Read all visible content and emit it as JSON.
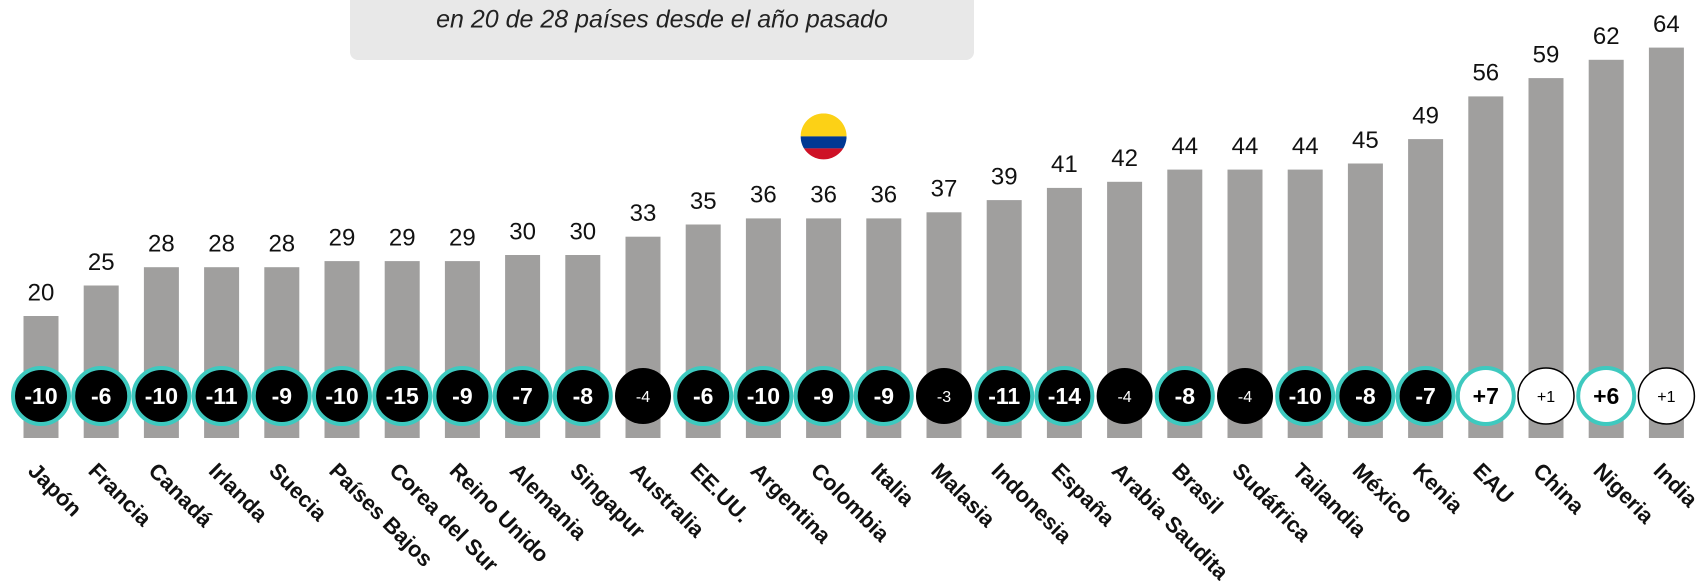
{
  "chart_data": {
    "type": "bar",
    "subtitle": "en 20 de 28 países desde el año pasado",
    "categories": [
      "Japón",
      "Francia",
      "Canadá",
      "Irlanda",
      "Suecia",
      "Países Bajos",
      "Corea del Sur",
      "Reino Unido",
      "Alemania",
      "Singapur",
      "Australia",
      "EE.UU.",
      "Argentina",
      "Colombia",
      "Italia",
      "Malasia",
      "Indonesia",
      "España",
      "Arabia Saudita",
      "Brasil",
      "Sudáfrica",
      "Tailandia",
      "México",
      "Kenia",
      "EAU",
      "China",
      "Nigeria",
      "India"
    ],
    "values": [
      20,
      25,
      28,
      28,
      28,
      29,
      29,
      29,
      30,
      30,
      33,
      35,
      36,
      36,
      36,
      37,
      39,
      41,
      42,
      44,
      44,
      44,
      45,
      49,
      56,
      59,
      62,
      64
    ],
    "color": "#a09f9e",
    "changes": {
      "values": [
        -10,
        -6,
        -10,
        -11,
        -9,
        -10,
        -15,
        -9,
        -7,
        -8,
        -4,
        -6,
        -10,
        -9,
        -9,
        -3,
        -11,
        -14,
        -4,
        -8,
        -4,
        -10,
        -8,
        -7,
        7,
        1,
        6,
        1
      ],
      "value_labels": [
        "-10",
        "-6",
        "-10",
        "-11",
        "-9",
        "-10",
        "-15",
        "-9",
        "-7",
        "-8",
        "-4",
        "-6",
        "-10",
        "-9",
        "-9",
        "-3",
        "-11",
        "-14",
        "-4",
        "-8",
        "-4",
        "-10",
        "-8",
        "-7",
        "+7",
        "+1",
        "+6",
        "+1"
      ],
      "significant": [
        true,
        true,
        true,
        true,
        true,
        true,
        true,
        true,
        true,
        true,
        false,
        true,
        true,
        true,
        true,
        false,
        true,
        true,
        false,
        true,
        false,
        true,
        true,
        true,
        true,
        false,
        true,
        false
      ],
      "significant_color": "#3ec9bf"
    }
  }
}
